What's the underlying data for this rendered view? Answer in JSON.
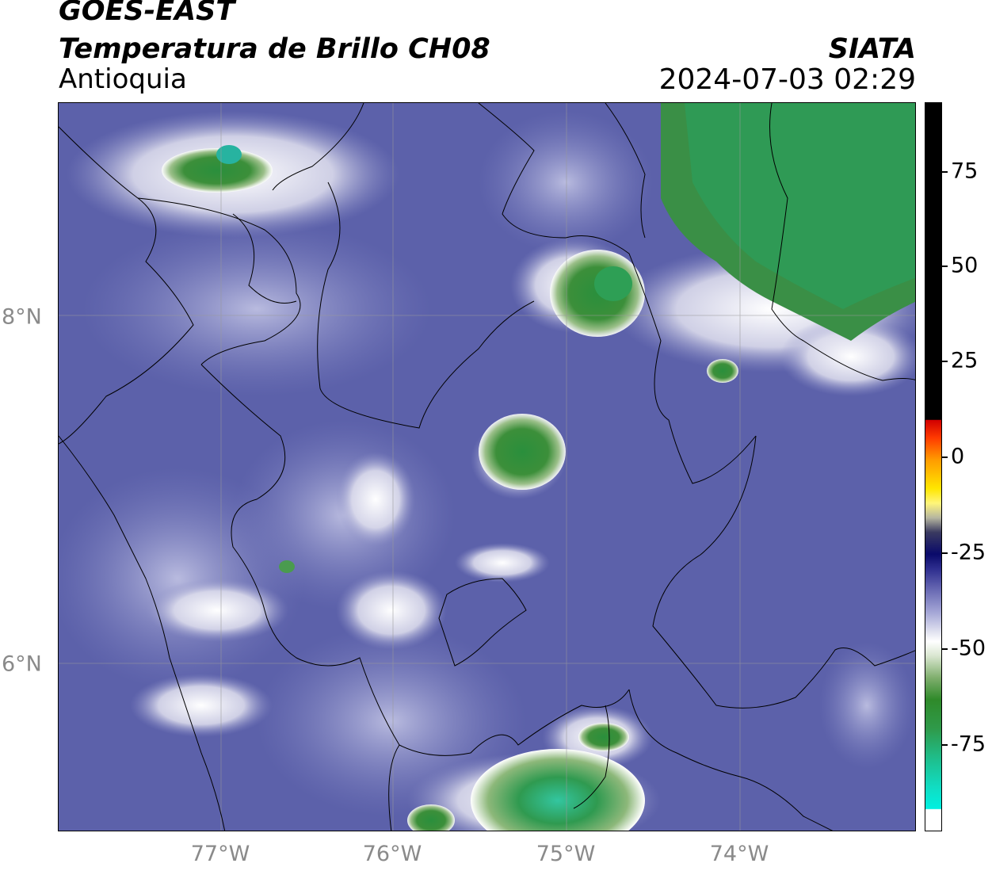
{
  "header": {
    "title1": "GOES-EAST",
    "title2": "Temperatura de Brillo CH08",
    "subtitle": "Antioquia",
    "brand": "SIATA",
    "datetime": "2024-07-03 02:29"
  },
  "map_axes": {
    "lon_labels": [
      "77°W",
      "76°W",
      "75°W",
      "74°W"
    ],
    "lat_labels": [
      "8°N",
      "6°N"
    ]
  },
  "colorbar": {
    "labels": [
      "75",
      "50",
      "25",
      "0",
      "-25",
      "-50",
      "-75"
    ],
    "colors": {
      "warm_top": "#000000",
      "red": "#d10000",
      "yellow": "#ffe600",
      "navy": "#0a0a6a",
      "periwinkle": "#6a6bb4",
      "white": "#ffffff",
      "green": "#2f8a2a",
      "cyan": "#00f0e0"
    }
  }
}
